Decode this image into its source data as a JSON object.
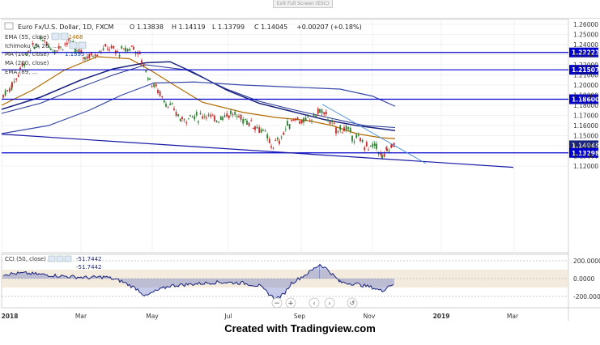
{
  "toolbar": {
    "exit_label": "Exit Full Screen (ESC)"
  },
  "header": {
    "symbol": "Euro Fx/U.S. Dollar, 1D, FXCM",
    "open": "O 1.13838",
    "high": "H 1.14119",
    "low": "L 1.13799",
    "close": "C 1.14045",
    "change": "+0.00207 (+0.18%)"
  },
  "indicators": [
    {
      "label": "EMA (55, close)",
      "value": "1.1468",
      "color": "#b36b00"
    },
    {
      "label": "Ichimoku (9, 26, ...",
      "value": "",
      "color": "#1a237e"
    },
    {
      "label": "MA (100, close)",
      "value": "1.1555",
      "color": "#0d47a1"
    },
    {
      "label": "MA (200, close)",
      "value": "",
      "color": "#283593"
    },
    {
      "label": "EMA (89, ...",
      "value": "",
      "color": "#1a237e"
    }
  ],
  "price_axis": {
    "ticks": [
      "1.26000",
      "1.25000",
      "1.24000",
      "1.23000",
      "1.22000",
      "1.21000",
      "1.20000",
      "1.19000",
      "1.18000",
      "1.17000",
      "1.16000",
      "1.15000",
      "1.14000",
      "1.13000",
      "1.12000"
    ],
    "levels": [
      {
        "label": "1.23221",
        "value": 1.23221
      },
      {
        "label": "1.21507",
        "value": 1.21507
      },
      {
        "label": "1.18600",
        "value": 1.186
      },
      {
        "label": "1.14045",
        "value": 1.14045
      },
      {
        "label": "1.13298",
        "value": 1.13298
      }
    ]
  },
  "cci": {
    "label": "CCI (50, close)",
    "value": "-51.7442",
    "label2": "-51.7442",
    "ticks": [
      "200.0000",
      "0.0000",
      "-200.0000"
    ]
  },
  "time_axis": [
    "2018",
    "Mar",
    "May",
    "Jul",
    "Sep",
    "Nov",
    "2019",
    "Mar"
  ],
  "nav_icons": [
    "minus-icon",
    "plus-icon",
    "arrow-left-icon",
    "arrow-right-icon",
    "reset-icon"
  ],
  "footer": {
    "text": "Created with Tradingview.com"
  },
  "colors": {
    "up": "#2e7d32",
    "down": "#c62828",
    "level_line": "#0000cc",
    "ema55": "#b36b00",
    "ma": "#1a237e",
    "trend_light": "#4a90e2"
  }
}
